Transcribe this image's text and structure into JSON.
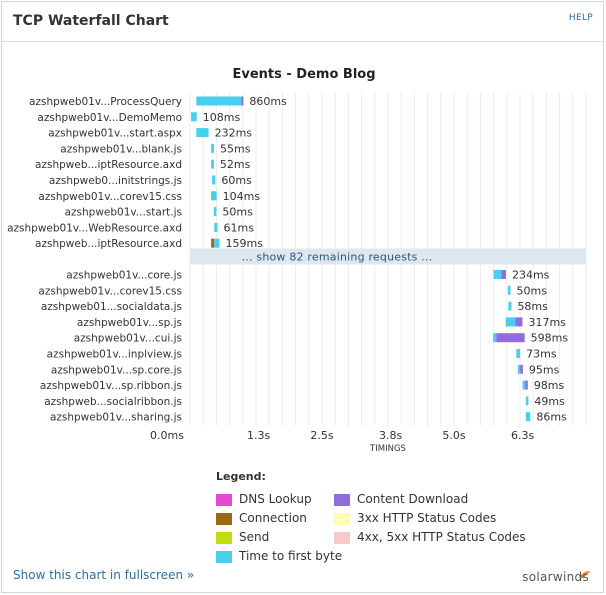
{
  "panel": {
    "title": "TCP Waterfall Chart",
    "help_label": "HELP"
  },
  "chart_data": {
    "type": "bar",
    "subtype": "waterfall",
    "title": "Events - Demo Blog",
    "xlabel": "TIMINGS",
    "x_unit": "s",
    "xlim": [
      0,
      7.5
    ],
    "x_ticks": [
      0,
      1.3,
      2.5,
      3.8,
      5.0,
      6.3
    ],
    "x_tick_labels": [
      "0.0ms",
      "1.3s",
      "2.5s",
      "3.8s",
      "5.0s",
      "6.3s"
    ],
    "grid": true,
    "phase_colors": {
      "dns": "#e64ad3",
      "connection": "#9c6a17",
      "send": "#c3dc0f",
      "ttfb": "#48cfee",
      "download": "#8f6ddd"
    },
    "requests_top": [
      {
        "label": "azshpweb01v...ProcessQuery",
        "start": 0.12,
        "duration_ms": 860,
        "duration_label": "860ms",
        "phases": [
          {
            "phase": "ttfb",
            "ms": 850
          },
          {
            "phase": "download",
            "ms": 10
          }
        ],
        "status": "2xx"
      },
      {
        "label": "azshpweb01v...DemoMemo",
        "start": 0.02,
        "duration_ms": 108,
        "duration_label": "108ms",
        "phases": [
          {
            "phase": "ttfb",
            "ms": 108
          }
        ],
        "status": "3xx"
      },
      {
        "label": "azshpweb01v...start.aspx",
        "start": 0.12,
        "duration_ms": 232,
        "duration_label": "232ms",
        "phases": [
          {
            "phase": "ttfb",
            "ms": 232
          }
        ],
        "status": "2xx"
      },
      {
        "label": "azshpweb01v...blank.js",
        "start": 0.4,
        "duration_ms": 55,
        "duration_label": "55ms",
        "phases": [
          {
            "phase": "ttfb",
            "ms": 55
          }
        ],
        "status": "2xx"
      },
      {
        "label": "azshpweb...iptResource.axd",
        "start": 0.4,
        "duration_ms": 52,
        "duration_label": "52ms",
        "phases": [
          {
            "phase": "ttfb",
            "ms": 52
          }
        ],
        "status": "2xx"
      },
      {
        "label": "azshpweb0...initstrings.js",
        "start": 0.42,
        "duration_ms": 60,
        "duration_label": "60ms",
        "phases": [
          {
            "phase": "ttfb",
            "ms": 60
          }
        ],
        "status": "2xx"
      },
      {
        "label": "azshpweb01v...corev15.css",
        "start": 0.4,
        "duration_ms": 104,
        "duration_label": "104ms",
        "phases": [
          {
            "phase": "ttfb",
            "ms": 104
          }
        ],
        "status": "2xx"
      },
      {
        "label": "azshpweb01v...start.js",
        "start": 0.45,
        "duration_ms": 50,
        "duration_label": "50ms",
        "phases": [
          {
            "phase": "ttfb",
            "ms": 50
          }
        ],
        "status": "2xx"
      },
      {
        "label": "azshpweb01v...WebResource.axd",
        "start": 0.46,
        "duration_ms": 61,
        "duration_label": "61ms",
        "phases": [
          {
            "phase": "ttfb",
            "ms": 61
          }
        ],
        "status": "2xx"
      },
      {
        "label": "azshpweb...iptResource.axd",
        "start": 0.4,
        "duration_ms": 159,
        "duration_label": "159ms",
        "phases": [
          {
            "phase": "connection",
            "ms": 60
          },
          {
            "phase": "ttfb",
            "ms": 99
          }
        ],
        "status": "2xx"
      }
    ],
    "collapsed_label": "... show 82 remaining requests ...",
    "requests_bottom": [
      {
        "label": "azshpweb01v...core.js",
        "start": 5.75,
        "duration_ms": 234,
        "duration_label": "234ms",
        "phases": [
          {
            "phase": "ttfb",
            "ms": 150
          },
          {
            "phase": "download",
            "ms": 84
          }
        ],
        "status": "2xx"
      },
      {
        "label": "azshpweb01v...corev15.css",
        "start": 6.02,
        "duration_ms": 50,
        "duration_label": "50ms",
        "phases": [
          {
            "phase": "ttfb",
            "ms": 50
          }
        ],
        "status": "2xx"
      },
      {
        "label": "azshpweb01...socialdata.js",
        "start": 6.03,
        "duration_ms": 58,
        "duration_label": "58ms",
        "phases": [
          {
            "phase": "ttfb",
            "ms": 58
          }
        ],
        "status": "2xx"
      },
      {
        "label": "azshpweb01v...sp.js",
        "start": 5.98,
        "duration_ms": 317,
        "duration_label": "317ms",
        "phases": [
          {
            "phase": "ttfb",
            "ms": 180
          },
          {
            "phase": "download",
            "ms": 137
          }
        ],
        "status": "2xx"
      },
      {
        "label": "azshpweb01v...cui.js",
        "start": 5.74,
        "duration_ms": 598,
        "duration_label": "598ms",
        "phases": [
          {
            "phase": "ttfb",
            "ms": 60
          },
          {
            "phase": "download",
            "ms": 538
          }
        ],
        "status": "2xx"
      },
      {
        "label": "azshpweb01v...inplview.js",
        "start": 6.18,
        "duration_ms": 73,
        "duration_label": "73ms",
        "phases": [
          {
            "phase": "ttfb",
            "ms": 73
          }
        ],
        "status": "2xx"
      },
      {
        "label": "azshpweb01v...sp.core.js",
        "start": 6.21,
        "duration_ms": 95,
        "duration_label": "95ms",
        "phases": [
          {
            "phase": "ttfb",
            "ms": 45
          },
          {
            "phase": "download",
            "ms": 50
          }
        ],
        "status": "2xx"
      },
      {
        "label": "azshpweb01v...sp.ribbon.js",
        "start": 6.3,
        "duration_ms": 98,
        "duration_label": "98ms",
        "phases": [
          {
            "phase": "ttfb",
            "ms": 48
          },
          {
            "phase": "download",
            "ms": 50
          }
        ],
        "status": "2xx"
      },
      {
        "label": "azshpweb...socialribbon.js",
        "start": 6.36,
        "duration_ms": 49,
        "duration_label": "49ms",
        "phases": [
          {
            "phase": "ttfb",
            "ms": 49
          }
        ],
        "status": "2xx"
      },
      {
        "label": "azshpweb01v...sharing.js",
        "start": 6.36,
        "duration_ms": 86,
        "duration_label": "86ms",
        "phases": [
          {
            "phase": "ttfb",
            "ms": 86
          }
        ],
        "status": "2xx"
      }
    ],
    "legend": {
      "title": "Legend:",
      "items": [
        {
          "label": "DNS Lookup",
          "color": "#e64ad3"
        },
        {
          "label": "Connection",
          "color": "#9c6a17"
        },
        {
          "label": "Send",
          "color": "#c3dc0f"
        },
        {
          "label": "Time to first byte",
          "color": "#48cfee"
        },
        {
          "label": "Content Download",
          "color": "#8f6ddd"
        },
        {
          "label": "3xx HTTP Status Codes",
          "color": "#fdfcb8"
        },
        {
          "label": "4xx, 5xx HTTP Status Codes",
          "color": "#f9c9c9"
        }
      ]
    }
  },
  "footer": {
    "fullscreen_link": "Show this chart in fullscreen »",
    "brand": "solarwinds",
    "brand_mark_color": "#f27a21"
  }
}
